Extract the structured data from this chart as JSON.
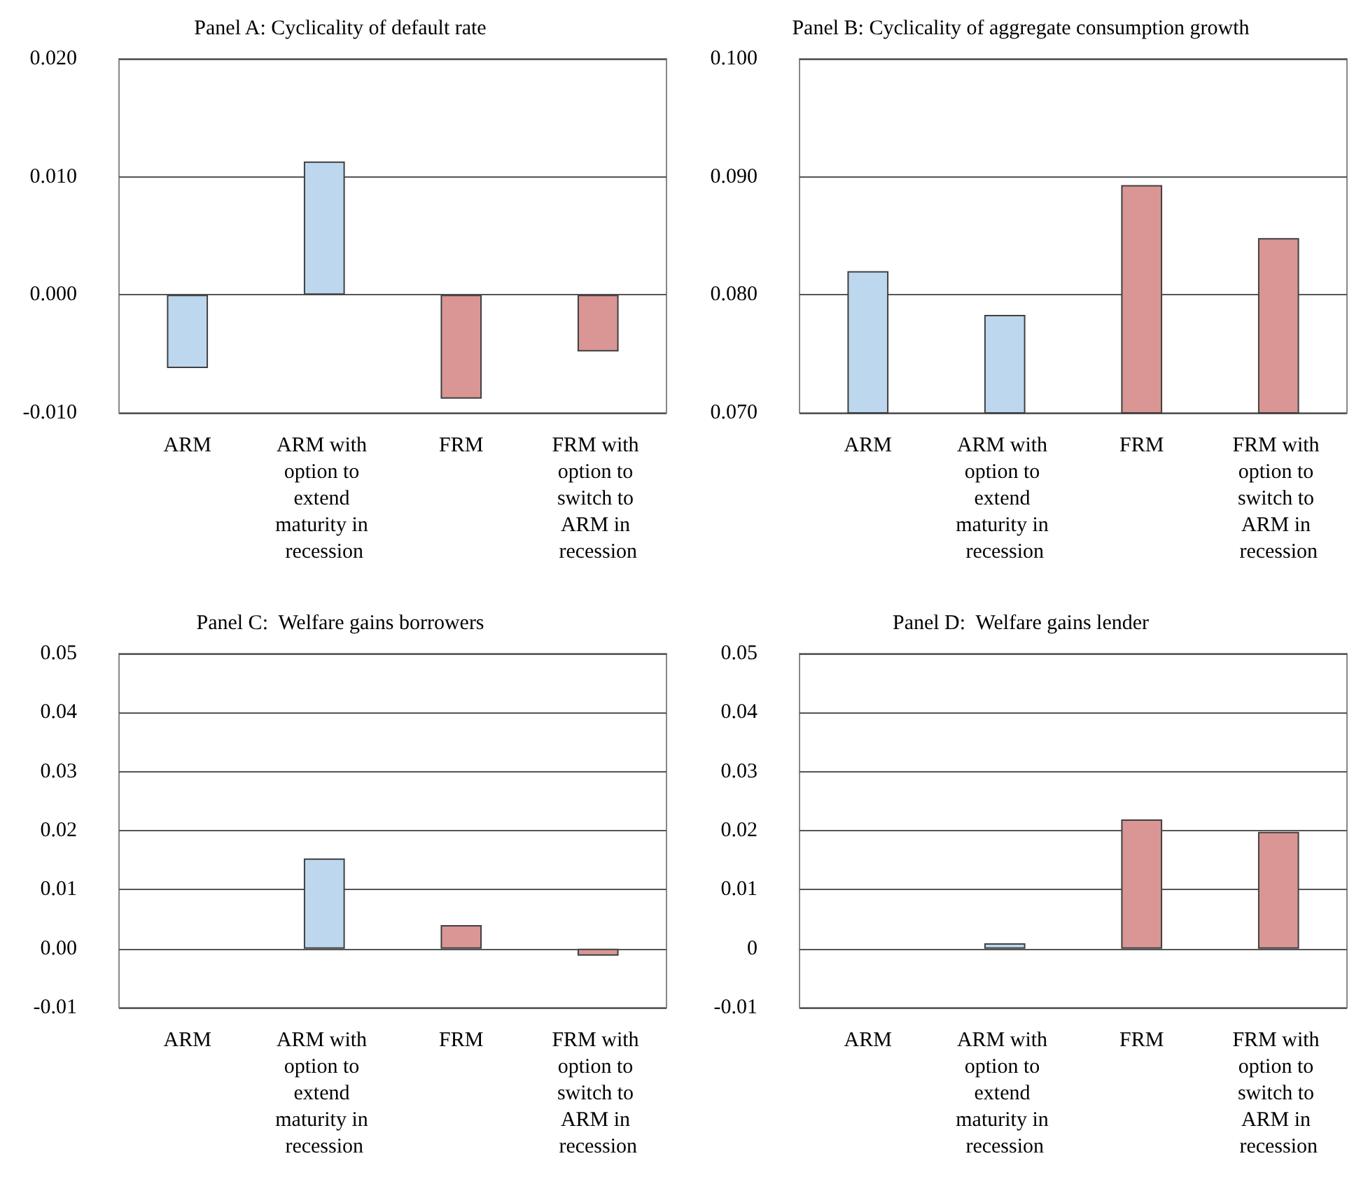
{
  "chart_data": [
    {
      "type": "bar",
      "title": "Panel A: Cyclicality of default rate",
      "categories": [
        "ARM",
        "ARM with option to extend maturity in recession",
        "FRM",
        "FRM with option to switch to ARM in recession"
      ],
      "values": [
        -0.0062,
        0.0113,
        -0.0088,
        -0.0048
      ],
      "colors": [
        "#bdd7ee",
        "#bdd7ee",
        "#d99694",
        "#d99694"
      ],
      "ylim": [
        -0.01,
        0.02
      ],
      "yticks": [
        {
          "value": -0.01,
          "label": "-0.010"
        },
        {
          "value": 0,
          "label": "0.000"
        },
        {
          "value": 0.01,
          "label": "0.010"
        },
        {
          "value": 0.02,
          "label": "0.020"
        }
      ],
      "grid": "y"
    },
    {
      "type": "bar",
      "title": "Panel B: Cyclicality of aggregate consumption growth",
      "categories": [
        "ARM",
        "ARM with option to extend maturity in recession",
        "FRM",
        "FRM with option to switch to ARM in recession"
      ],
      "values": [
        0.082,
        0.0783,
        0.0893,
        0.0848
      ],
      "colors": [
        "#bdd7ee",
        "#bdd7ee",
        "#d99694",
        "#d99694"
      ],
      "ylim": [
        0.07,
        0.1
      ],
      "yticks": [
        {
          "value": 0.07,
          "label": "0.070"
        },
        {
          "value": 0.08,
          "label": "0.080"
        },
        {
          "value": 0.09,
          "label": "0.090"
        },
        {
          "value": 0.1,
          "label": "0.100"
        }
      ],
      "grid": "y"
    },
    {
      "type": "bar",
      "title": "Panel C:  Welfare gains borrowers",
      "categories": [
        "ARM",
        "ARM with option to extend maturity in recession",
        "FRM",
        "FRM with option to switch to ARM in recession"
      ],
      "values": [
        0,
        0.0153,
        0.004,
        -0.0012
      ],
      "colors": [
        "#bdd7ee",
        "#bdd7ee",
        "#d99694",
        "#d99694"
      ],
      "ylim": [
        -0.01,
        0.05
      ],
      "yticks": [
        -0.01,
        {
          "value": 0,
          "label": "0.00"
        },
        0.01,
        0.02,
        0.03,
        0.04,
        0.05
      ],
      "grid": "y"
    },
    {
      "type": "bar",
      "title": "Panel D:  Welfare gains lender",
      "categories": [
        "ARM",
        "ARM with option to extend maturity in recession",
        "FRM",
        "FRM with option to switch to ARM in recession"
      ],
      "values": [
        0,
        0.0009,
        0.0219,
        0.0198
      ],
      "colors": [
        "#bdd7ee",
        "#bdd7ee",
        "#d99694",
        "#d99694"
      ],
      "ylim": [
        -0.01,
        0.05
      ],
      "yticks": [
        -0.01,
        0,
        0.01,
        0.02,
        0.03,
        0.04,
        0.05
      ],
      "grid": "y"
    }
  ]
}
